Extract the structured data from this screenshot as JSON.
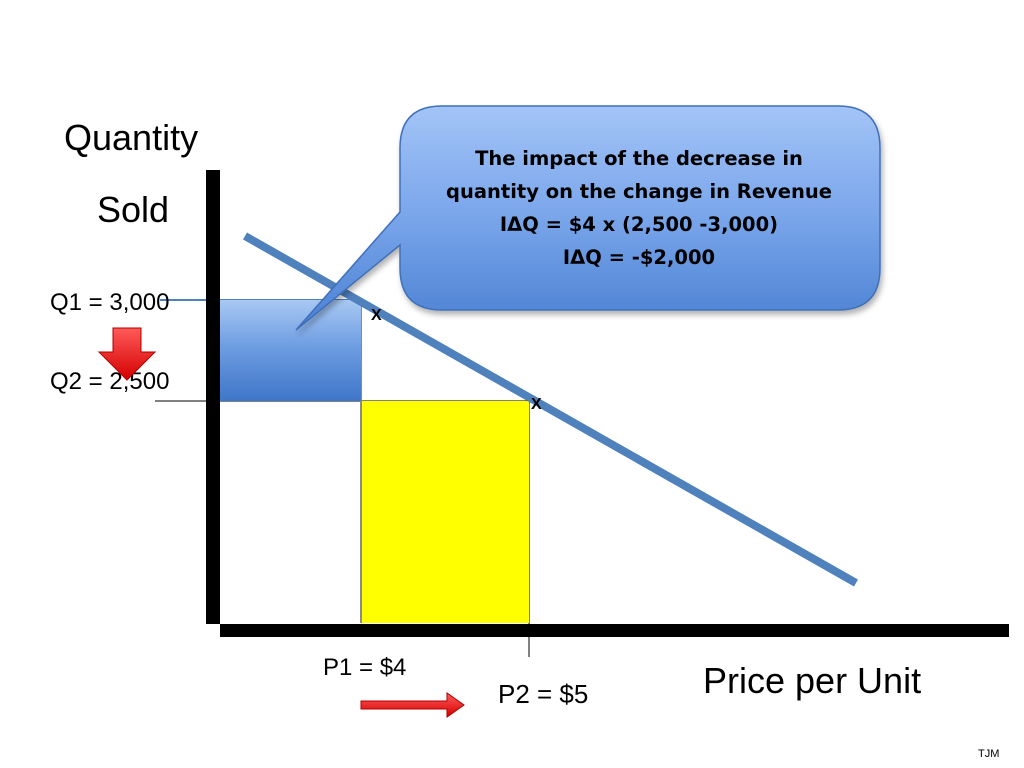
{
  "axes": {
    "y_label_line1": "Quantity",
    "y_label_line2": "Sold",
    "x_label": "Price per Unit"
  },
  "points": {
    "q1_label": "Q1 = 3,000",
    "q2_label": "Q2 = 2,500",
    "p1_label": "P1 = $4",
    "p2_label": "P2 = $5",
    "marker_1": "X",
    "marker_2": "X"
  },
  "callout": {
    "line1": "The impact of the decrease in",
    "line2": "quantity on the change in Revenue",
    "line3": "IΔQ = $4 x (2,500 -3,000)",
    "line4": "IΔQ = -$2,000"
  },
  "footer": {
    "initials": "TJM"
  },
  "colors": {
    "demand_line": "#4f81bd",
    "blue_rect": "#5b8fd6",
    "yellow_rect": "#ffff00",
    "callout_fill": "#6d9be0",
    "down_arrow": "#ee1111",
    "right_arrow": "#ee1111"
  }
}
